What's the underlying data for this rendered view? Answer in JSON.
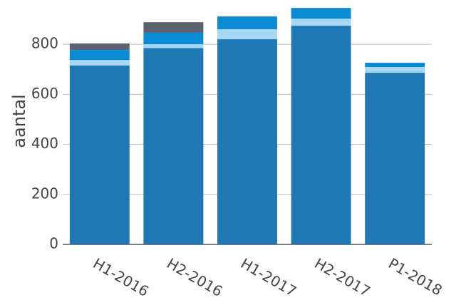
{
  "chart_data": {
    "type": "stacked-bar",
    "y_label": "aantal",
    "categories": [
      "H1-2016",
      "H2-2016",
      "H1-2017",
      "H2-2017",
      "P1-2018"
    ],
    "series": [
      {
        "color": "#1f77b4",
        "values": [
          715,
          785,
          820,
          874,
          686
        ]
      },
      {
        "color": "#a6d8f5",
        "values": [
          22,
          15,
          40,
          28,
          23
        ]
      },
      {
        "color": "#0a8ad2",
        "values": [
          40,
          46,
          51,
          43,
          17
        ]
      },
      {
        "color": "#5a6170",
        "values": [
          26,
          42,
          0,
          0,
          0
        ]
      }
    ],
    "ylim": [
      0,
      954
    ],
    "yticks": [
      0,
      200,
      400,
      600,
      800
    ],
    "grid": true
  }
}
